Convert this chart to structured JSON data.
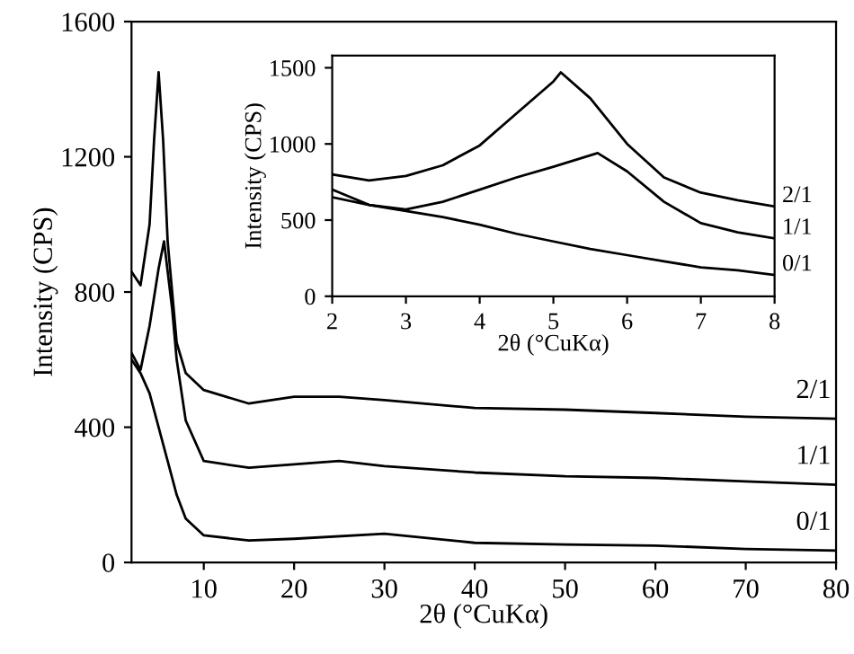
{
  "chart_data": [
    {
      "type": "line",
      "xlabel": "2θ (°CuKα)",
      "ylabel": "Intensity (CPS)",
      "xlim": [
        2,
        80
      ],
      "ylim": [
        0,
        1600
      ],
      "xticks": [
        10,
        20,
        30,
        40,
        50,
        60,
        70,
        80
      ],
      "yticks": [
        0,
        400,
        800,
        1200,
        1600
      ],
      "grid": false,
      "legend": false,
      "series": [
        {
          "name": "2/1",
          "color": "#000000",
          "x": [
            2,
            3,
            4,
            4.5,
            5,
            5.5,
            6,
            7,
            8,
            10,
            15,
            20,
            25,
            30,
            40,
            50,
            60,
            70,
            80
          ],
          "values": [
            860,
            820,
            1000,
            1250,
            1450,
            1250,
            950,
            650,
            560,
            510,
            470,
            490,
            490,
            480,
            457,
            452,
            442,
            431,
            425
          ]
        },
        {
          "name": "1/1",
          "color": "#000000",
          "x": [
            2,
            3,
            4,
            5,
            5.6,
            6.5,
            7,
            8,
            10,
            15,
            20,
            25,
            30,
            40,
            50,
            60,
            70,
            80
          ],
          "values": [
            620,
            570,
            700,
            870,
            950,
            750,
            600,
            420,
            300,
            280,
            290,
            300,
            285,
            266,
            255,
            250,
            240,
            230
          ]
        },
        {
          "name": "0/1",
          "color": "#000000",
          "x": [
            2,
            3,
            4,
            5,
            6,
            7,
            8,
            10,
            15,
            20,
            30,
            40,
            50,
            60,
            70,
            80
          ],
          "values": [
            600,
            560,
            500,
            400,
            300,
            200,
            130,
            80,
            65,
            70,
            85,
            58,
            53,
            50,
            40,
            35
          ]
        }
      ]
    },
    {
      "type": "line",
      "xlabel": "2θ (°CuKα)",
      "ylabel": "Intensity (CPS)",
      "xlim": [
        2,
        8
      ],
      "ylim": [
        0,
        1580
      ],
      "xticks": [
        2,
        3,
        4,
        5,
        6,
        7,
        8
      ],
      "yticks": [
        0,
        500,
        1000,
        1500
      ],
      "grid": false,
      "legend": false,
      "series": [
        {
          "name": "2/1",
          "color": "#000000",
          "x": [
            2,
            2.5,
            3,
            3.5,
            4,
            4.5,
            5,
            5.1,
            5.5,
            6,
            6.5,
            7,
            7.5,
            8
          ],
          "values": [
            800,
            760,
            790,
            860,
            990,
            1200,
            1410,
            1470,
            1300,
            1000,
            780,
            680,
            630,
            590
          ]
        },
        {
          "name": "1/1",
          "color": "#000000",
          "x": [
            2,
            2.5,
            3,
            3.5,
            4,
            4.5,
            5,
            5.6,
            6,
            6.5,
            7,
            7.5,
            8
          ],
          "values": [
            700,
            600,
            570,
            620,
            700,
            780,
            850,
            940,
            820,
            620,
            480,
            420,
            380
          ]
        },
        {
          "name": "0/1",
          "color": "#000000",
          "x": [
            2,
            2.5,
            3,
            3.5,
            4,
            4.5,
            5,
            5.5,
            6,
            6.5,
            7,
            7.5,
            8
          ],
          "values": [
            650,
            600,
            560,
            520,
            470,
            410,
            360,
            310,
            270,
            230,
            190,
            170,
            140
          ]
        }
      ]
    }
  ]
}
